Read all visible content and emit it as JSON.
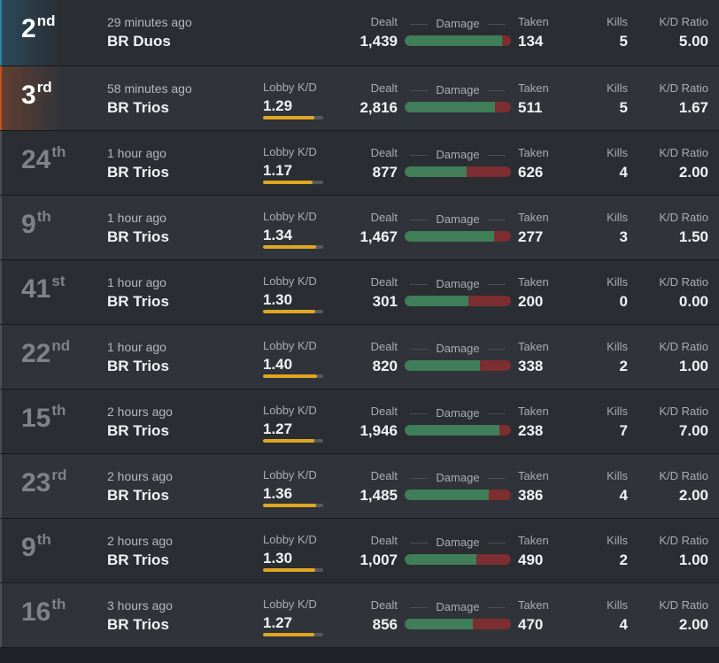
{
  "labels": {
    "lobby_kd": "Lobby K/D",
    "dealt": "Dealt",
    "damage": "Damage",
    "taken": "Taken",
    "kills": "Kills",
    "kd_ratio": "K/D Ratio"
  },
  "colors": {
    "accent_first": "#2f7fa8",
    "accent_second": "#c3541e",
    "damage_dealt": "#3f7e58",
    "damage_taken": "#7c2e30",
    "lobby_bar": "#e0a722"
  },
  "matches": [
    {
      "placement": "2",
      "suffix": "nd",
      "time": "29 minutes ago",
      "mode": "BR Duos",
      "lobby_kd": "",
      "lobby_fraction": 0,
      "dealt": "1,439",
      "dealt_num": 1439,
      "taken": "134",
      "taken_num": 134,
      "kills": "5",
      "kd": "5.00",
      "highlight": "first"
    },
    {
      "placement": "3",
      "suffix": "rd",
      "time": "58 minutes ago",
      "mode": "BR Trios",
      "lobby_kd": "1.29",
      "lobby_fraction": 0.86,
      "dealt": "2,816",
      "dealt_num": 2816,
      "taken": "511",
      "taken_num": 511,
      "kills": "5",
      "kd": "1.67",
      "highlight": "second"
    },
    {
      "placement": "24",
      "suffix": "th",
      "time": "1 hour ago",
      "mode": "BR Trios",
      "lobby_kd": "1.17",
      "lobby_fraction": 0.82,
      "dealt": "877",
      "dealt_num": 877,
      "taken": "626",
      "taken_num": 626,
      "kills": "4",
      "kd": "2.00",
      "highlight": ""
    },
    {
      "placement": "9",
      "suffix": "th",
      "time": "1 hour ago",
      "mode": "BR Trios",
      "lobby_kd": "1.34",
      "lobby_fraction": 0.88,
      "dealt": "1,467",
      "dealt_num": 1467,
      "taken": "277",
      "taken_num": 277,
      "kills": "3",
      "kd": "1.50",
      "highlight": ""
    },
    {
      "placement": "41",
      "suffix": "st",
      "time": "1 hour ago",
      "mode": "BR Trios",
      "lobby_kd": "1.30",
      "lobby_fraction": 0.87,
      "dealt": "301",
      "dealt_num": 301,
      "taken": "200",
      "taken_num": 200,
      "kills": "0",
      "kd": "0.00",
      "highlight": ""
    },
    {
      "placement": "22",
      "suffix": "nd",
      "time": "1 hour ago",
      "mode": "BR Trios",
      "lobby_kd": "1.40",
      "lobby_fraction": 0.9,
      "dealt": "820",
      "dealt_num": 820,
      "taken": "338",
      "taken_num": 338,
      "kills": "2",
      "kd": "1.00",
      "highlight": ""
    },
    {
      "placement": "15",
      "suffix": "th",
      "time": "2 hours ago",
      "mode": "BR Trios",
      "lobby_kd": "1.27",
      "lobby_fraction": 0.86,
      "dealt": "1,946",
      "dealt_num": 1946,
      "taken": "238",
      "taken_num": 238,
      "kills": "7",
      "kd": "7.00",
      "highlight": ""
    },
    {
      "placement": "23",
      "suffix": "rd",
      "time": "2 hours ago",
      "mode": "BR Trios",
      "lobby_kd": "1.36",
      "lobby_fraction": 0.88,
      "dealt": "1,485",
      "dealt_num": 1485,
      "taken": "386",
      "taken_num": 386,
      "kills": "4",
      "kd": "2.00",
      "highlight": ""
    },
    {
      "placement": "9",
      "suffix": "th",
      "time": "2 hours ago",
      "mode": "BR Trios",
      "lobby_kd": "1.30",
      "lobby_fraction": 0.87,
      "dealt": "1,007",
      "dealt_num": 1007,
      "taken": "490",
      "taken_num": 490,
      "kills": "2",
      "kd": "1.00",
      "highlight": ""
    },
    {
      "placement": "16",
      "suffix": "th",
      "time": "3 hours ago",
      "mode": "BR Trios",
      "lobby_kd": "1.27",
      "lobby_fraction": 0.86,
      "dealt": "856",
      "dealt_num": 856,
      "taken": "470",
      "taken_num": 470,
      "kills": "4",
      "kd": "2.00",
      "highlight": ""
    }
  ]
}
